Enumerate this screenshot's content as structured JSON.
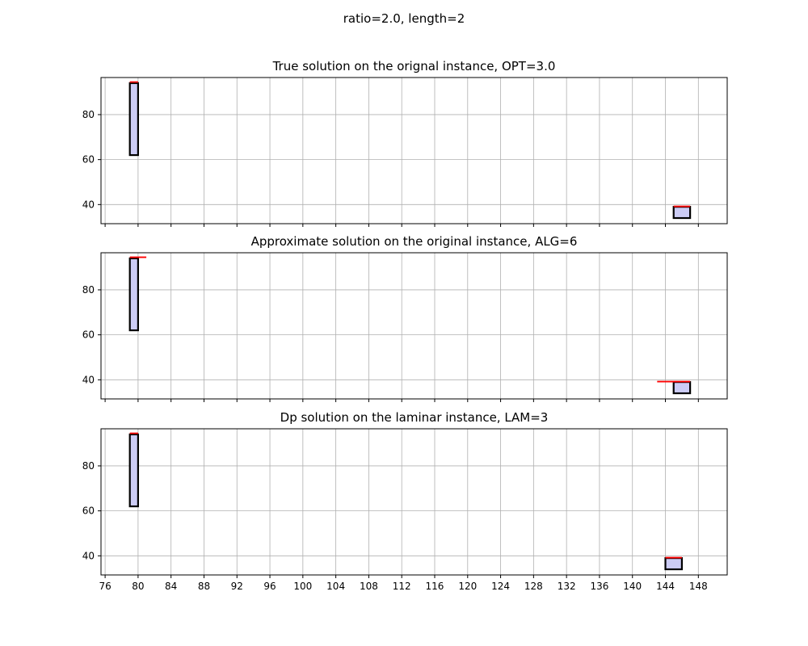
{
  "figure": {
    "suptitle": "ratio=2.0, length=2"
  },
  "chart_data": [
    {
      "type": "bar",
      "title": "True solution on the orignal instance, OPT=3.0",
      "xlabel": "",
      "ylabel": "",
      "xlim": [
        75.5,
        151.5
      ],
      "ylim": [
        31.5,
        96.5
      ],
      "grid": true,
      "xticks": [
        76,
        80,
        84,
        88,
        92,
        96,
        100,
        104,
        108,
        112,
        116,
        120,
        124,
        128,
        132,
        136,
        140,
        144,
        148
      ],
      "yticks": [
        40,
        60,
        80
      ],
      "show_xtick_labels": false,
      "rects": [
        {
          "x0": 79,
          "x1": 80,
          "y0": 62,
          "y1": 94
        },
        {
          "x0": 145,
          "x1": 147,
          "y0": 34,
          "y1": 39
        }
      ],
      "red_segments": [
        {
          "x0": 79,
          "x1": 80,
          "y": 94.5
        },
        {
          "x0": 145,
          "x1": 147,
          "y": 39.2
        }
      ]
    },
    {
      "type": "bar",
      "title": "Approximate solution on the original instance, ALG=6",
      "xlabel": "",
      "ylabel": "",
      "xlim": [
        75.5,
        151.5
      ],
      "ylim": [
        31.5,
        96.5
      ],
      "grid": true,
      "xticks": [
        76,
        80,
        84,
        88,
        92,
        96,
        100,
        104,
        108,
        112,
        116,
        120,
        124,
        128,
        132,
        136,
        140,
        144,
        148
      ],
      "yticks": [
        40,
        60,
        80
      ],
      "show_xtick_labels": false,
      "rects": [
        {
          "x0": 79,
          "x1": 80,
          "y0": 62,
          "y1": 94
        },
        {
          "x0": 145,
          "x1": 147,
          "y0": 34,
          "y1": 39
        }
      ],
      "red_segments": [
        {
          "x0": 79,
          "x1": 81,
          "y": 94.5
        },
        {
          "x0": 143,
          "x1": 147,
          "y": 39.2
        }
      ]
    },
    {
      "type": "bar",
      "title": "Dp solution on the laminar instance, LAM=3",
      "xlabel": "",
      "ylabel": "",
      "xlim": [
        75.5,
        151.5
      ],
      "ylim": [
        31.5,
        96.5
      ],
      "grid": true,
      "xticks": [
        76,
        80,
        84,
        88,
        92,
        96,
        100,
        104,
        108,
        112,
        116,
        120,
        124,
        128,
        132,
        136,
        140,
        144,
        148
      ],
      "yticks": [
        40,
        60,
        80
      ],
      "show_xtick_labels": true,
      "rects": [
        {
          "x0": 79,
          "x1": 80,
          "y0": 62,
          "y1": 94
        },
        {
          "x0": 144,
          "x1": 146,
          "y0": 34,
          "y1": 39
        }
      ],
      "red_segments": [
        {
          "x0": 79,
          "x1": 80,
          "y": 94.5
        },
        {
          "x0": 144,
          "x1": 146,
          "y": 39.2
        }
      ]
    }
  ],
  "colors": {
    "rect_fill": "#ccccf5",
    "rect_edge": "#000000",
    "red_segment": "#ff0000",
    "grid": "#b0b0b0",
    "axes": "#000000"
  }
}
